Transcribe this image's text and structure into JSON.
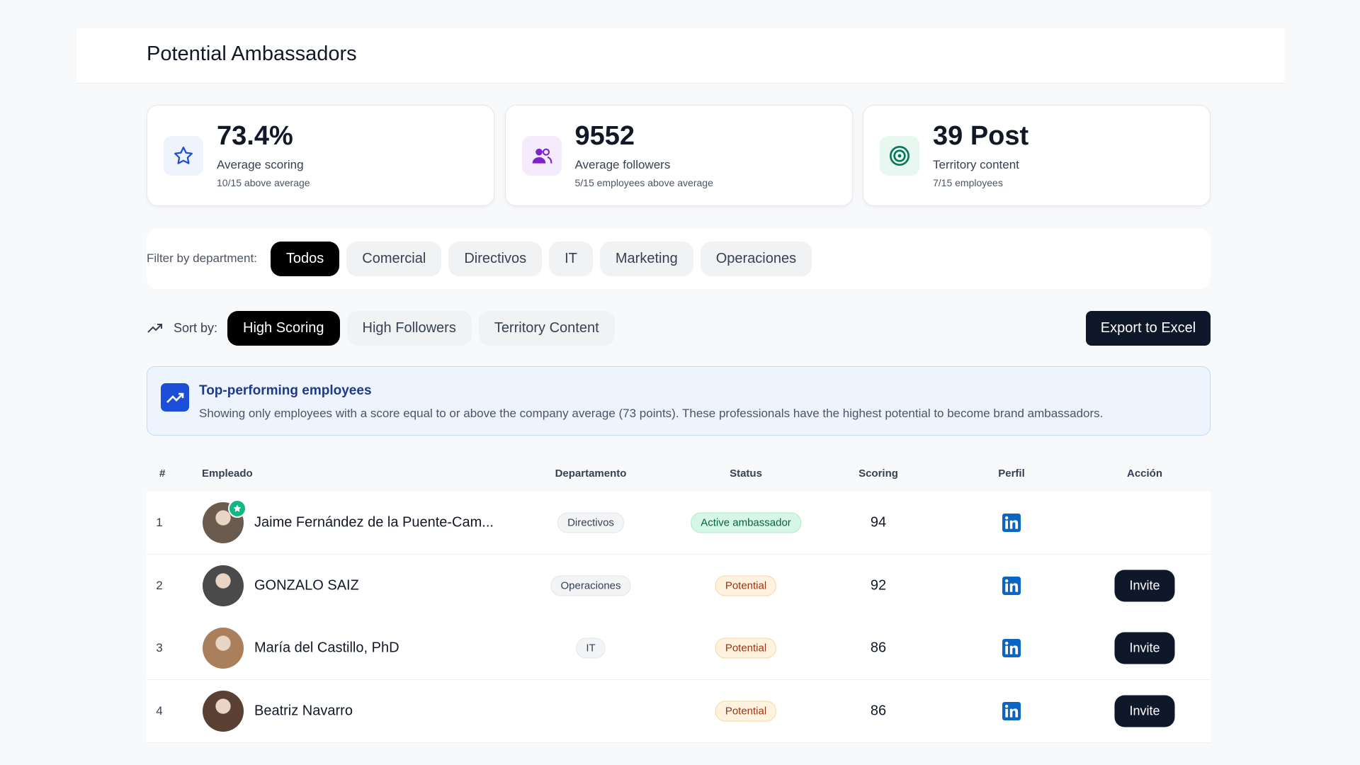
{
  "header": {
    "title": "Potential Ambassadors"
  },
  "stats": [
    {
      "value": "73.4%",
      "label": "Average scoring",
      "note": "10/15 above average",
      "color": "#1d4ed8",
      "bg": "#eef3fe"
    },
    {
      "value": "9552",
      "label": "Average followers",
      "note": "5/15 employees above average",
      "color": "#7e22ce",
      "bg": "#f4ecfd"
    },
    {
      "value": "39 Post",
      "label": "Territory content",
      "note": "7/15 employees",
      "color": "#047857",
      "bg": "#e8f7f0"
    }
  ],
  "filter": {
    "label": "Filter by department:",
    "options": [
      "Todos",
      "Comercial",
      "Directivos",
      "IT",
      "Marketing",
      "Operaciones"
    ],
    "active": 0
  },
  "sort": {
    "label": "Sort by:",
    "options": [
      "High Scoring",
      "High Followers",
      "Territory Content"
    ],
    "active": 0
  },
  "export_button": "Export to Excel",
  "info": {
    "title": "Top-performing employees",
    "text": "Showing only employees with a score equal to or above the company average (73 points). These professionals have the highest potential to become brand ambassadors."
  },
  "table": {
    "columns": [
      "#",
      "Empleado",
      "Departamento",
      "Status",
      "Scoring",
      "Perfil",
      "Acción"
    ],
    "rows": [
      {
        "rank": 1,
        "name": "Jaime Fernández de la Puente-Cam...",
        "department": "Directivos",
        "status": "Active ambassador",
        "status_color": "green",
        "score": 94
      },
      {
        "rank": 2,
        "name": "GONZALO SAIZ",
        "department": "Operaciones",
        "status": "Potential",
        "status_color": "orange",
        "score": 92,
        "action": "Invite"
      },
      {
        "rank": 3,
        "name": "María del Castillo, PhD",
        "department": "IT",
        "status": "Potential",
        "status_color": "orange",
        "score": 86,
        "action": "Invite"
      },
      {
        "rank": 4,
        "name": "Beatriz Navarro",
        "status": "Potential",
        "status_color": "orange",
        "score": 86,
        "action": "Invite"
      }
    ]
  }
}
